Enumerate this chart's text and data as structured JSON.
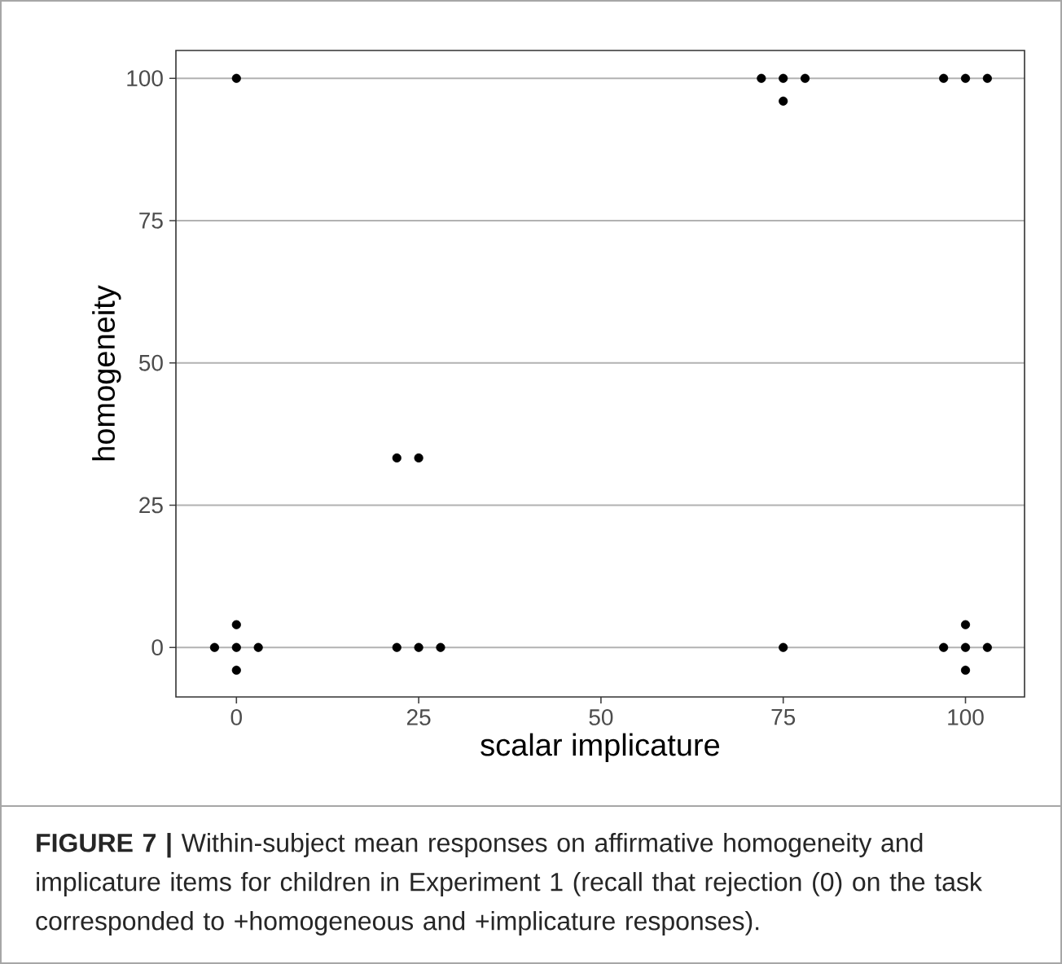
{
  "chart_data": {
    "type": "scatter",
    "xlabel": "scalar implicature",
    "ylabel": "homogeneity",
    "xlim": [
      -8.3,
      108.1
    ],
    "ylim": [
      -8.7,
      104.9
    ],
    "xticks": [
      0,
      25,
      50,
      75,
      100
    ],
    "yticks": [
      0,
      25,
      50,
      75,
      100
    ],
    "grid": "y",
    "marker": "circle",
    "annotations": [
      "**FIGURE 7 |** Within-subject mean responses on affirmative homogeneity and implicature items for children in Experiment 1 (recall that rejection (0) on the task corresponded to +homogeneous and +implicature responses)."
    ],
    "series": [
      {
        "color": "#000000",
        "x": [
          0,
          -3,
          0,
          3,
          0,
          0,
          22,
          25,
          22,
          25,
          28,
          72,
          75,
          78,
          75,
          75,
          97,
          100,
          103,
          97,
          100,
          103,
          100,
          100
        ],
        "values": [
          100,
          0,
          0,
          0,
          4,
          -4,
          33.3,
          33.3,
          0,
          0,
          0,
          100,
          100,
          100,
          96,
          0,
          100,
          100,
          100,
          0,
          0,
          0,
          4,
          -4
        ]
      }
    ]
  }
}
